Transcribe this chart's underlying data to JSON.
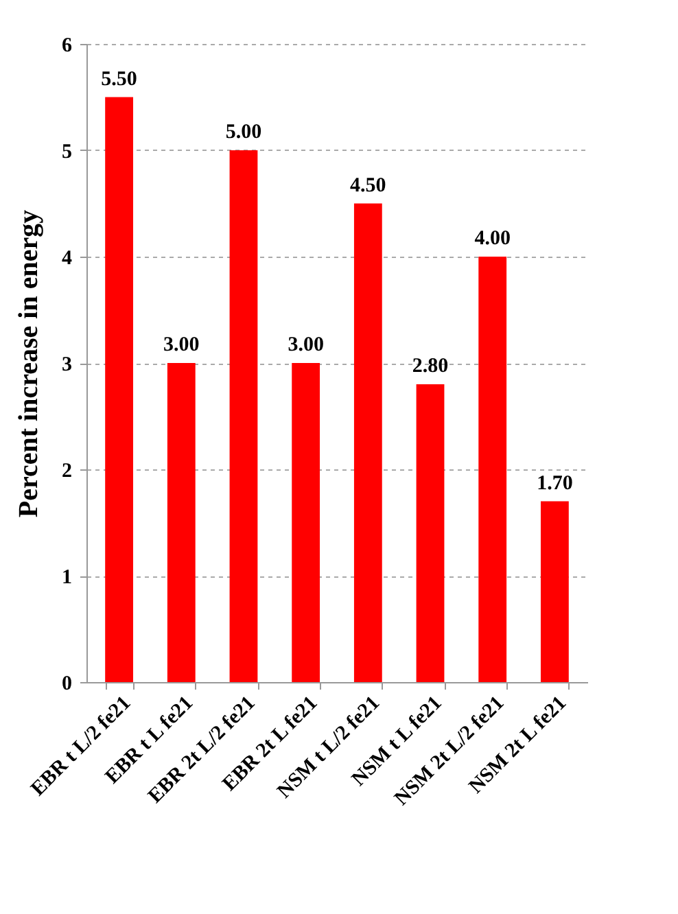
{
  "chart_data": {
    "type": "bar",
    "ylabel": "Percent increase in energy",
    "categories": [
      "EBR t L/2 fe21",
      "EBR t L fe21",
      "EBR 2t L/2 fe21",
      "EBR 2t  L fe21",
      "NSM t L/2 fe21",
      "NSM t  L fe21",
      "NSM 2t L/2 fe21",
      "NSM 2t L fe21"
    ],
    "values": [
      5.5,
      3.0,
      5.0,
      3.0,
      4.5,
      2.8,
      4.0,
      1.7
    ],
    "value_labels": [
      "5.50",
      "3.00",
      "5.00",
      "3.00",
      "4.50",
      "2.80",
      "4.00",
      "1.70"
    ],
    "color": "#ff0000",
    "ylim": [
      0,
      6
    ],
    "yticks": [
      0,
      1,
      2,
      3,
      4,
      5,
      6
    ],
    "grid": "y"
  }
}
